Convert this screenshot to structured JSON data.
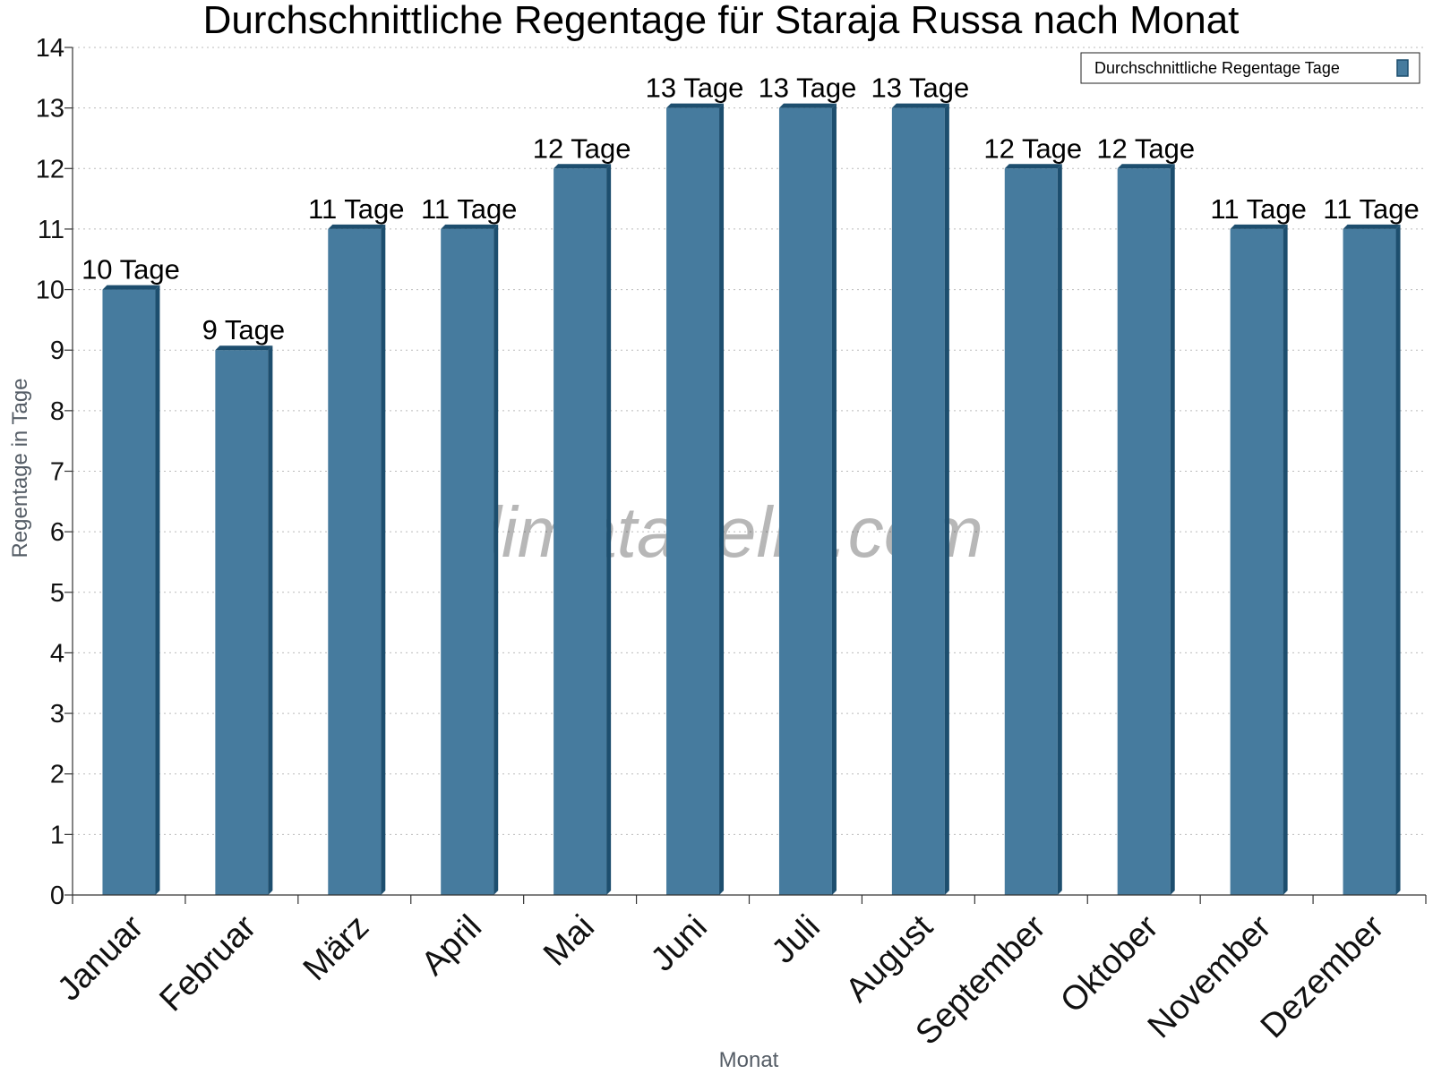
{
  "chart_data": {
    "type": "bar",
    "title": "Durchschnittliche Regentage für Staraja Russa nach Monat",
    "xlabel": "Monat",
    "ylabel": "Regentage in Tage",
    "categories": [
      "Januar",
      "Februar",
      "März",
      "April",
      "Mai",
      "Juni",
      "Juli",
      "August",
      "September",
      "Oktober",
      "November",
      "Dezember"
    ],
    "series": [
      {
        "name": "Durchschnittliche Regentage Tage",
        "values": [
          10,
          9,
          11,
          11,
          12,
          13,
          13,
          13,
          12,
          12,
          11,
          11
        ],
        "data_labels": [
          "10 Tage",
          "9 Tage",
          "11 Tage",
          "11 Tage",
          "12 Tage",
          "13 Tage",
          "13 Tage",
          "13 Tage",
          "12 Tage",
          "12 Tage",
          "11 Tage",
          "11 Tage"
        ]
      }
    ],
    "ylim": [
      0,
      14
    ],
    "yticks": [
      0,
      1,
      2,
      3,
      4,
      5,
      6,
      7,
      8,
      9,
      10,
      11,
      12,
      13,
      14
    ],
    "grid": true,
    "legend_position": "top-right",
    "watermark": "klimatabelle.com",
    "colors": {
      "bar": "#467b9e",
      "bar_dark": "#1d4e6e",
      "grid": "#bbbbbb",
      "axis": "#333333"
    }
  }
}
